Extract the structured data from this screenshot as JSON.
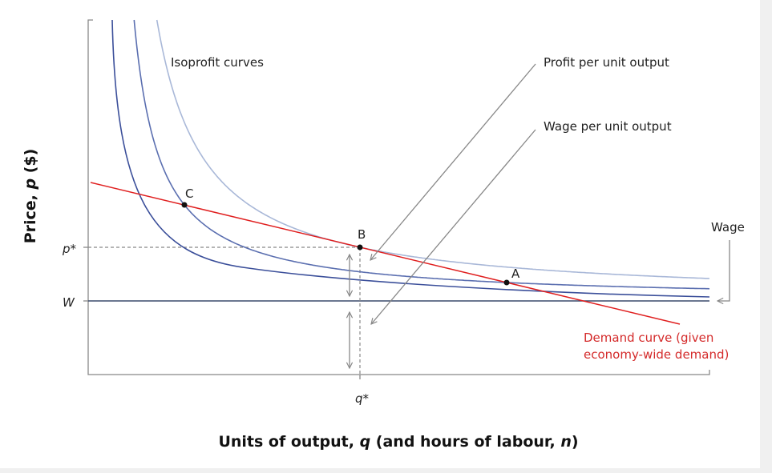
{
  "labels": {
    "isoprofit": "Isoprofit curves",
    "profit_per_unit": "Profit per unit output",
    "wage_per_unit": "Wage per unit output",
    "wage": "Wage",
    "demand_line1": "Demand curve (given",
    "demand_line2": "economy-wide demand)"
  },
  "points": {
    "a": "A",
    "b": "B",
    "c": "C"
  },
  "axis_marks": {
    "p_star": "p*",
    "w": "W",
    "q_star": "q*"
  },
  "y_axis_title": {
    "text": "Price, ",
    "var": "p",
    "unit": " ($)"
  },
  "x_axis_title": {
    "part1": "Units of output, ",
    "var1": "q",
    "part2": " (and hours of labour, ",
    "var2": "n",
    "part3": ")"
  }
}
